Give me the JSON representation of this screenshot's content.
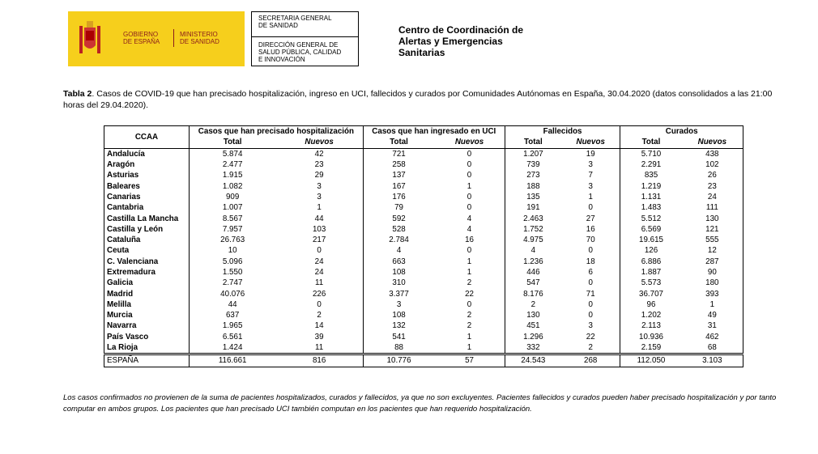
{
  "header": {
    "gobierno": [
      "GOBIERNO",
      "DE ESPAÑA"
    ],
    "ministerio": [
      "MINISTERIO",
      "DE SANIDAD"
    ],
    "secretaria": [
      "SECRETARIA GENERAL",
      "DE SANIDAD"
    ],
    "direccion": [
      "DIRECCIÓN GENERAL DE",
      "SALUD PÚBLICA, CALIDAD",
      "E INNOVACIÓN"
    ],
    "centro": [
      "Centro de Coordinación de",
      "Alertas y Emergencias",
      "Sanitarias"
    ]
  },
  "caption": {
    "label": "Tabla 2",
    "text": ". Casos de COVID-19 que han precisado hospitalización, ingreso en UCI, fallecidos y curados por Comunidades Autónomas en España, 30.04.2020 (datos consolidados a las 21:00 horas del 29.04.2020)."
  },
  "table": {
    "first_header": "CCAA",
    "groups": [
      "Casos que han precisado hospitalización",
      "Casos que han ingresado en UCI",
      "Fallecidos",
      "Curados"
    ],
    "subheaders": [
      "Total",
      "Nuevos",
      "Total",
      "Nuevos",
      "Total",
      "Nuevos",
      "Total",
      "Nuevos"
    ],
    "rows": [
      [
        "Andalucía",
        "5.874",
        "42",
        "721",
        "0",
        "1.207",
        "19",
        "5.710",
        "438"
      ],
      [
        "Aragón",
        "2.477",
        "23",
        "258",
        "0",
        "739",
        "3",
        "2.291",
        "102"
      ],
      [
        "Asturias",
        "1.915",
        "29",
        "137",
        "0",
        "273",
        "7",
        "835",
        "26"
      ],
      [
        "Baleares",
        "1.082",
        "3",
        "167",
        "1",
        "188",
        "3",
        "1.219",
        "23"
      ],
      [
        "Canarias",
        "909",
        "3",
        "176",
        "0",
        "135",
        "1",
        "1.131",
        "24"
      ],
      [
        "Cantabria",
        "1.007",
        "1",
        "79",
        "0",
        "191",
        "0",
        "1.483",
        "111"
      ],
      [
        "Castilla La Mancha",
        "8.567",
        "44",
        "592",
        "4",
        "2.463",
        "27",
        "5.512",
        "130"
      ],
      [
        "Castilla y León",
        "7.957",
        "103",
        "528",
        "4",
        "1.752",
        "16",
        "6.569",
        "121"
      ],
      [
        "Cataluña",
        "26.763",
        "217",
        "2.784",
        "16",
        "4.975",
        "70",
        "19.615",
        "555"
      ],
      [
        "Ceuta",
        "10",
        "0",
        "4",
        "0",
        "4",
        "0",
        "126",
        "12"
      ],
      [
        "C. Valenciana",
        "5.096",
        "24",
        "663",
        "1",
        "1.236",
        "18",
        "6.886",
        "287"
      ],
      [
        "Extremadura",
        "1.550",
        "24",
        "108",
        "1",
        "446",
        "6",
        "1.887",
        "90"
      ],
      [
        "Galicia",
        "2.747",
        "11",
        "310",
        "2",
        "547",
        "0",
        "5.573",
        "180"
      ],
      [
        "Madrid",
        "40.076",
        "226",
        "3.377",
        "22",
        "8.176",
        "71",
        "36.707",
        "393"
      ],
      [
        "Melilla",
        "44",
        "0",
        "3",
        "0",
        "2",
        "0",
        "96",
        "1"
      ],
      [
        "Murcia",
        "637",
        "2",
        "108",
        "2",
        "130",
        "0",
        "1.202",
        "49"
      ],
      [
        "Navarra",
        "1.965",
        "14",
        "132",
        "2",
        "451",
        "3",
        "2.113",
        "31"
      ],
      [
        "País Vasco",
        "6.561",
        "39",
        "541",
        "1",
        "1.296",
        "22",
        "10.936",
        "462"
      ],
      [
        "La Rioja",
        "1.424",
        "11",
        "88",
        "1",
        "332",
        "2",
        "2.159",
        "68"
      ]
    ],
    "total": [
      "ESPAÑA",
      "116.661",
      "816",
      "10.776",
      "57",
      "24.543",
      "268",
      "112.050",
      "3.103"
    ]
  },
  "footnote": "Los casos confirmados no provienen de la suma de pacientes hospitalizados, curados y fallecidos, ya que no son excluyentes. Pacientes fallecidos y curados pueden haber precisado hospitalización y por tanto computar en ambos grupos. Los pacientes que han precisado UCI también computan en los pacientes que han requerido hospitalización."
}
